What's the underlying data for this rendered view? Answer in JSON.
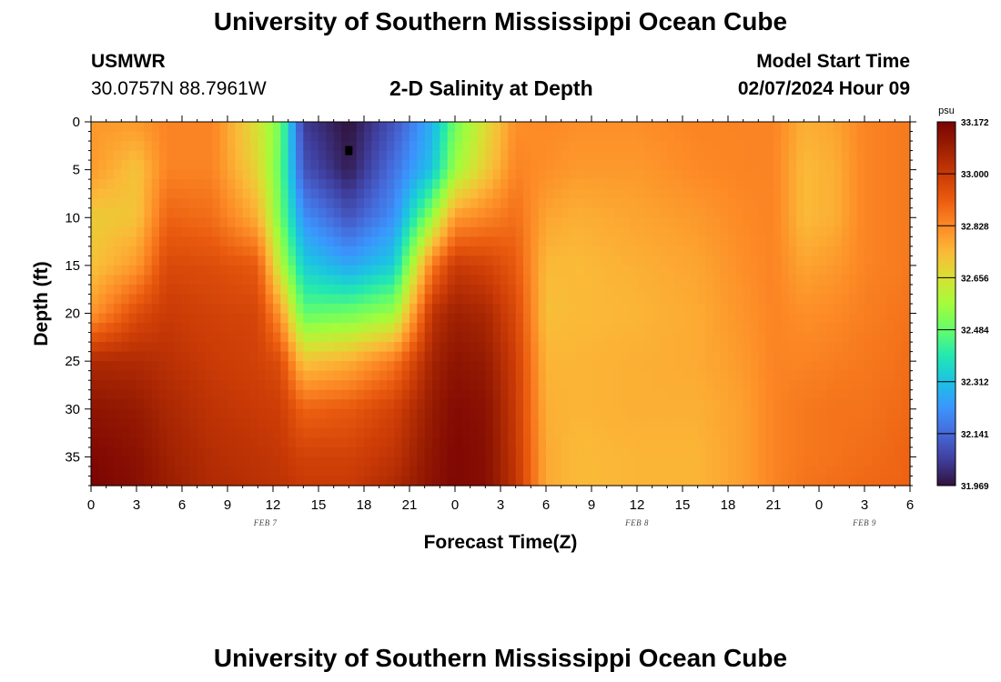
{
  "page": {
    "title": "University of Southern Mississippi Ocean Cube",
    "footer_title": "University of Southern Mississippi Ocean Cube",
    "station": "USMWR",
    "coords": "30.0757N  88.7961W",
    "plot_title": "2-D Salinity at Depth",
    "model_start_label": "Model Start Time",
    "model_start_value": "02/07/2024 Hour 09"
  },
  "chart_data": {
    "type": "heatmap",
    "title": "2-D Salinity at Depth",
    "xlabel": "Forecast Time(Z)",
    "ylabel": "Depth (ft)",
    "x_range_hours": [
      0,
      54
    ],
    "y_range_ft": [
      0,
      38
    ],
    "x_tick_labels": [
      "0",
      "3",
      "6",
      "9",
      "12",
      "15",
      "18",
      "21",
      "0",
      "3",
      "6",
      "9",
      "12",
      "15",
      "18",
      "21",
      "0",
      "3",
      "6"
    ],
    "y_ticks": [
      "0",
      "5",
      "10",
      "15",
      "20",
      "25",
      "30",
      "35"
    ],
    "date_labels": [
      {
        "text": "FEB 7",
        "hour": 11.5
      },
      {
        "text": "FEB 8",
        "hour": 36
      },
      {
        "text": "FEB 9",
        "hour": 51
      }
    ],
    "colorbar": {
      "unit": "psu",
      "min": 31.969,
      "max": 33.172,
      "tick_labels": [
        "33.172",
        "33.000",
        "32.828",
        "32.656",
        "32.484",
        "32.312",
        "32.141",
        "31.969"
      ],
      "colors": [
        "#30123b",
        "#3f3e9c",
        "#4669d9",
        "#3b95fe",
        "#1cc2e4",
        "#23e8b0",
        "#64fd6a",
        "#a4fc3b",
        "#d8e033",
        "#fbb938",
        "#fd8a26",
        "#ea5b0f",
        "#c93a06",
        "#9c1f02",
        "#7a0403"
      ]
    },
    "sections": [
      {
        "x": 0,
        "profile": [
          32.8,
          32.8,
          32.7,
          32.72,
          32.8,
          33.05,
          33.12,
          33.16,
          33.17
        ]
      },
      {
        "x": 3,
        "profile": [
          32.8,
          32.72,
          32.72,
          32.8,
          32.95,
          33.05,
          33.1,
          33.13,
          33.14
        ]
      },
      {
        "x": 5,
        "profile": [
          32.84,
          32.84,
          32.9,
          32.96,
          33.0,
          33.03,
          33.06,
          33.08,
          33.09
        ]
      },
      {
        "x": 8,
        "profile": [
          32.84,
          32.84,
          32.88,
          32.95,
          32.98,
          33.0,
          33.02,
          33.04,
          33.05
        ]
      },
      {
        "x": 11,
        "profile": [
          32.65,
          32.68,
          32.76,
          32.92,
          32.97,
          32.98,
          33.0,
          33.02,
          33.03
        ]
      },
      {
        "x": 12.5,
        "profile": [
          32.5,
          32.48,
          32.5,
          32.6,
          32.8,
          32.95,
          32.99,
          33.01,
          33.02
        ]
      },
      {
        "x": 14,
        "profile": [
          32.05,
          32.1,
          32.22,
          32.34,
          32.48,
          32.72,
          32.9,
          32.98,
          33.0
        ]
      },
      {
        "x": 17,
        "profile": [
          31.97,
          31.99,
          32.1,
          32.26,
          32.5,
          32.76,
          32.92,
          32.98,
          33.0
        ]
      },
      {
        "x": 20,
        "profile": [
          32.1,
          32.16,
          32.22,
          32.34,
          32.56,
          32.86,
          32.98,
          33.02,
          33.05
        ]
      },
      {
        "x": 22.5,
        "profile": [
          32.28,
          32.32,
          32.56,
          32.86,
          33.02,
          33.07,
          33.1,
          33.12,
          33.13
        ]
      },
      {
        "x": 24,
        "profile": [
          32.5,
          32.56,
          32.8,
          33.0,
          33.08,
          33.12,
          33.15,
          33.16,
          33.16
        ]
      },
      {
        "x": 26,
        "profile": [
          32.66,
          32.7,
          32.84,
          32.98,
          33.06,
          33.1,
          33.13,
          33.14,
          33.14
        ]
      },
      {
        "x": 28,
        "profile": [
          32.82,
          32.84,
          32.88,
          32.92,
          32.96,
          32.99,
          33.0,
          33.01,
          33.02
        ]
      },
      {
        "x": 30,
        "profile": [
          32.83,
          32.82,
          32.78,
          32.74,
          32.73,
          32.75,
          32.76,
          32.77,
          32.77
        ]
      },
      {
        "x": 32,
        "profile": [
          32.82,
          32.8,
          32.76,
          32.74,
          32.74,
          32.75,
          32.75,
          32.74,
          32.74
        ]
      },
      {
        "x": 36,
        "profile": [
          32.82,
          32.8,
          32.78,
          32.76,
          32.75,
          32.76,
          32.76,
          32.75,
          32.75
        ]
      },
      {
        "x": 40,
        "profile": [
          32.84,
          32.83,
          32.8,
          32.78,
          32.77,
          32.77,
          32.76,
          32.75,
          32.75
        ]
      },
      {
        "x": 43,
        "profile": [
          32.84,
          32.84,
          32.83,
          32.82,
          32.81,
          32.8,
          32.79,
          32.79,
          32.79
        ]
      },
      {
        "x": 45,
        "profile": [
          32.84,
          32.84,
          32.84,
          32.84,
          32.84,
          32.84,
          32.84,
          32.84,
          32.84
        ]
      },
      {
        "x": 47,
        "profile": [
          32.76,
          32.74,
          32.74,
          32.78,
          32.82,
          32.84,
          32.86,
          32.86,
          32.87
        ]
      },
      {
        "x": 49,
        "profile": [
          32.78,
          32.76,
          32.76,
          32.8,
          32.83,
          32.85,
          32.87,
          32.87,
          32.88
        ]
      },
      {
        "x": 51,
        "profile": [
          32.84,
          32.84,
          32.84,
          32.84,
          32.85,
          32.86,
          32.87,
          32.88,
          32.89
        ]
      },
      {
        "x": 54,
        "profile": [
          32.86,
          32.86,
          32.86,
          32.86,
          32.87,
          32.88,
          32.89,
          32.9,
          32.9
        ]
      }
    ],
    "profile_depths_ft": [
      0,
      5,
      10,
      15,
      20,
      25,
      30,
      35,
      38
    ],
    "marker": {
      "hour": 17,
      "depth_ft": 3
    }
  }
}
